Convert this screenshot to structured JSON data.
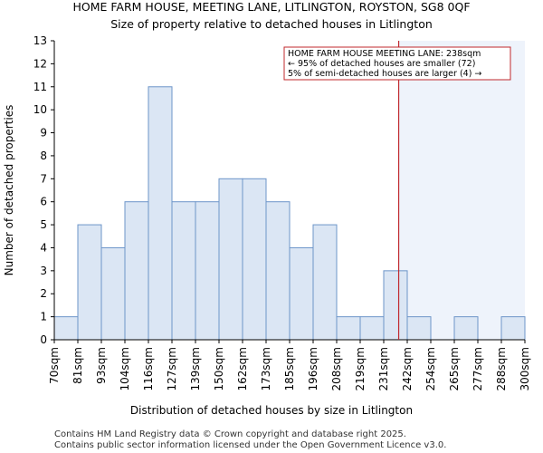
{
  "chart_data": {
    "type": "bar",
    "title": "HOME FARM HOUSE, MEETING LANE, LITLINGTON, ROYSTON, SG8 0QF",
    "subtitle": "Size of property relative to detached houses in Litlington",
    "xlabel": "Distribution of detached houses by size in Litlington",
    "ylabel": "Number of detached properties",
    "x_tick_labels": [
      "70sqm",
      "81sqm",
      "93sqm",
      "104sqm",
      "116sqm",
      "127sqm",
      "139sqm",
      "150sqm",
      "162sqm",
      "173sqm",
      "185sqm",
      "196sqm",
      "208sqm",
      "219sqm",
      "231sqm",
      "242sqm",
      "254sqm",
      "265sqm",
      "277sqm",
      "288sqm",
      "300sqm"
    ],
    "bin_edges": [
      70,
      81,
      93,
      104,
      116,
      127,
      139,
      150,
      162,
      173,
      185,
      196,
      208,
      219,
      231,
      242,
      254,
      265,
      277,
      288,
      300
    ],
    "values": [
      1,
      5,
      4,
      6,
      11,
      6,
      6,
      7,
      7,
      6,
      4,
      5,
      1,
      1,
      3,
      1,
      0,
      1,
      0,
      1
    ],
    "y_ticks": [
      0,
      1,
      2,
      3,
      4,
      5,
      6,
      7,
      8,
      9,
      10,
      11,
      12,
      13
    ],
    "ylim": [
      0,
      13
    ],
    "grid": false,
    "marker": {
      "value": 238,
      "color": "#c0282d",
      "annotation": [
        "HOME FARM HOUSE MEETING LANE: 238sqm",
        "← 95% of detached houses are smaller (72)",
        "5% of semi-detached houses are larger (4) →"
      ]
    },
    "colors": {
      "bar_fill": "#dbe6f4",
      "bar_stroke": "#6d95c9",
      "highlight_region": "#eef3fb"
    }
  },
  "footer": {
    "line1": "Contains HM Land Registry data © Crown copyright and database right 2025.",
    "line2": "Contains public sector information licensed under the Open Government Licence v3.0."
  }
}
